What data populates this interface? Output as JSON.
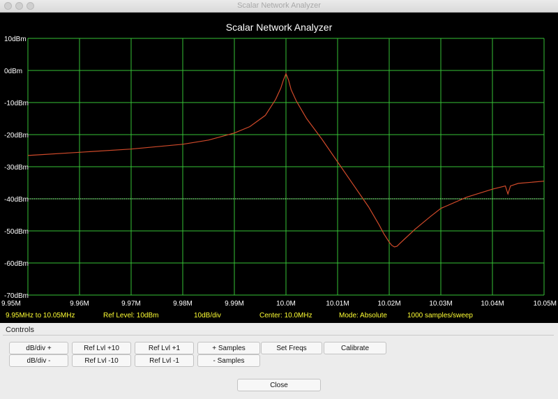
{
  "window": {
    "title": "Scalar Network Analyzer"
  },
  "chart_data": {
    "type": "line",
    "title": "Scalar Network Analyzer",
    "x_ticks": [
      "9.95M",
      "9.96M",
      "9.97M",
      "9.98M",
      "9.99M",
      "10.0M",
      "10.01M",
      "10.02M",
      "10.03M",
      "10.04M",
      "10.05M"
    ],
    "y_ticks": [
      "10dBm",
      "0dBm",
      "-10dBm",
      "-20dBm",
      "-30dBm",
      "-40dBm",
      "-50dBm",
      "-60dBm",
      "-70dBm"
    ],
    "xlim": [
      9.95,
      10.05
    ],
    "ylim": [
      -70,
      10
    ],
    "x_unit": "MHz",
    "grid": true,
    "series": [
      {
        "color": "#d04a2a",
        "x": [
          9.95,
          9.96,
          9.97,
          9.98,
          9.985,
          9.99,
          9.993,
          9.996,
          9.998,
          9.999,
          9.9995,
          10.0,
          10.0005,
          10.001,
          10.002,
          10.004,
          10.007,
          10.01,
          10.013,
          10.016,
          10.018,
          10.019,
          10.02,
          10.0205,
          10.021,
          10.0215,
          10.022,
          10.023,
          10.025,
          10.028,
          10.03,
          10.035,
          10.04,
          10.0425,
          10.043,
          10.0435,
          10.045,
          10.05
        ],
        "values": [
          -26.5,
          -25.5,
          -24.5,
          -23.0,
          -21.7,
          -19.5,
          -17.5,
          -14.0,
          -9.0,
          -5.5,
          -3.0,
          -1.0,
          -3.0,
          -6.0,
          -9.5,
          -15.0,
          -21.5,
          -28.5,
          -35.5,
          -42.5,
          -48.0,
          -51.0,
          -53.5,
          -54.5,
          -55.0,
          -54.8,
          -54.0,
          -52.5,
          -49.5,
          -45.5,
          -43.0,
          -39.5,
          -37.0,
          -36.0,
          -38.5,
          -36.0,
          -35.2,
          -34.5
        ]
      }
    ],
    "reference_line_dbm": -40
  },
  "status": {
    "range": "9.95MHz to 10.05MHz",
    "ref_level": "Ref Level: 10dBm",
    "scale": "10dB/div",
    "center": "Center: 10.0MHz",
    "mode": "Mode: Absolute",
    "samples": "1000 samples/sweep"
  },
  "controls": {
    "label": "Controls",
    "row1": [
      "dB/div +",
      "Ref Lvl +10",
      "Ref Lvl +1",
      "+ Samples",
      "Set Freqs",
      "Calibrate"
    ],
    "row2": [
      "dB/div -",
      "Ref Lvl -10",
      "Ref Lvl -1",
      "- Samples"
    ],
    "close": "Close"
  },
  "colors": {
    "plot_bg": "#000000",
    "grid": "#36c236",
    "trace": "#d04a2a",
    "axis_text": "#ffffff",
    "status_text": "#ffff33"
  }
}
